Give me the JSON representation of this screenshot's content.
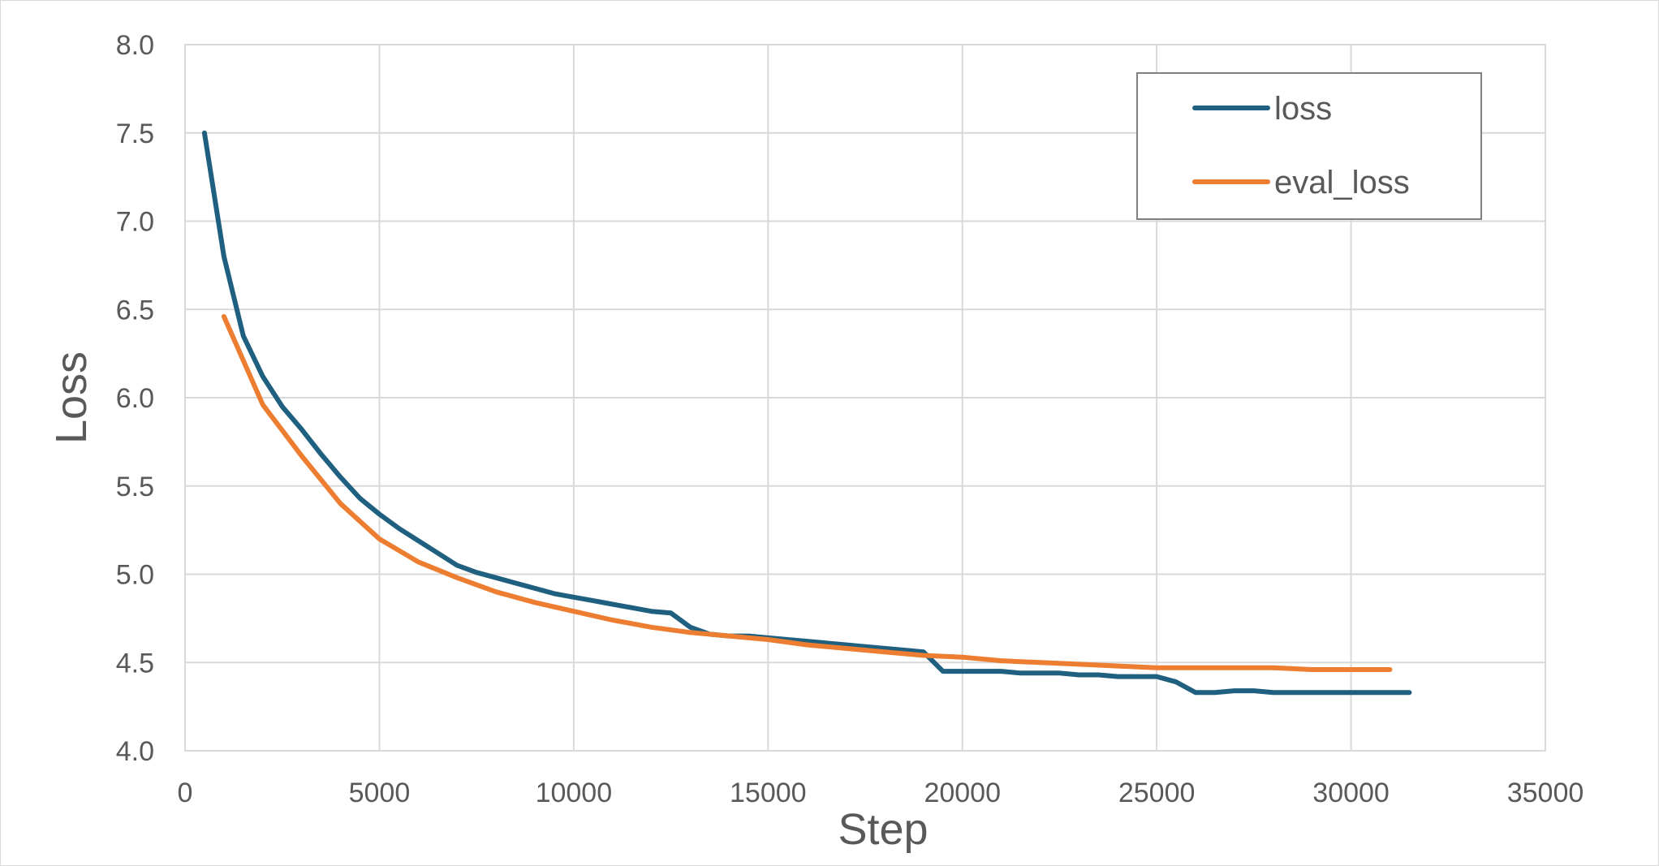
{
  "chart_data": {
    "type": "line",
    "title": "",
    "xlabel": "Step",
    "ylabel": "Loss",
    "xlim": [
      0,
      35000
    ],
    "ylim": [
      4.0,
      8.0
    ],
    "x_ticks": [
      0,
      5000,
      10000,
      15000,
      20000,
      25000,
      30000,
      35000
    ],
    "y_ticks": [
      "4.0",
      "4.5",
      "5.0",
      "5.5",
      "6.0",
      "6.5",
      "7.0",
      "7.5",
      "8.0"
    ],
    "grid": true,
    "legend_position": "top-right",
    "series": [
      {
        "name": "loss",
        "color": "#1f5f7f",
        "x": [
          500,
          1000,
          1500,
          2000,
          2500,
          3000,
          3500,
          4000,
          4500,
          5000,
          5500,
          6000,
          6500,
          7000,
          7500,
          8000,
          8500,
          9000,
          9500,
          10000,
          10500,
          11000,
          11500,
          12000,
          12500,
          13000,
          13500,
          14000,
          14500,
          15000,
          15500,
          16000,
          16500,
          17000,
          17500,
          18000,
          18500,
          19000,
          19500,
          20000,
          20500,
          21000,
          21500,
          22000,
          22500,
          23000,
          23500,
          24000,
          24500,
          25000,
          25500,
          26000,
          26500,
          27000,
          27500,
          28000,
          28500,
          29000,
          29500,
          30000,
          30500,
          31000,
          31500
        ],
        "y": [
          7.5,
          6.8,
          6.35,
          6.12,
          5.95,
          5.82,
          5.68,
          5.55,
          5.43,
          5.34,
          5.26,
          5.19,
          5.12,
          5.05,
          5.01,
          4.98,
          4.95,
          4.92,
          4.89,
          4.87,
          4.85,
          4.83,
          4.81,
          4.79,
          4.78,
          4.7,
          4.66,
          4.65,
          4.65,
          4.64,
          4.63,
          4.62,
          4.61,
          4.6,
          4.59,
          4.58,
          4.57,
          4.56,
          4.45,
          4.45,
          4.45,
          4.45,
          4.44,
          4.44,
          4.44,
          4.43,
          4.43,
          4.42,
          4.42,
          4.42,
          4.39,
          4.33,
          4.33,
          4.34,
          4.34,
          4.33,
          4.33,
          4.33,
          4.33,
          4.33,
          4.33,
          4.33,
          4.33
        ]
      },
      {
        "name": "eval_loss",
        "color": "#ed7d31",
        "x": [
          1000,
          2000,
          3000,
          4000,
          5000,
          6000,
          7000,
          8000,
          9000,
          10000,
          11000,
          12000,
          13000,
          14000,
          15000,
          16000,
          17000,
          18000,
          19000,
          20000,
          21000,
          22000,
          23000,
          24000,
          25000,
          26000,
          27000,
          28000,
          29000,
          30000,
          31000
        ],
        "y": [
          6.46,
          5.96,
          5.67,
          5.4,
          5.2,
          5.07,
          4.98,
          4.9,
          4.84,
          4.79,
          4.74,
          4.7,
          4.67,
          4.65,
          4.63,
          4.6,
          4.58,
          4.56,
          4.54,
          4.53,
          4.51,
          4.5,
          4.49,
          4.48,
          4.47,
          4.47,
          4.47,
          4.47,
          4.46,
          4.46,
          4.46
        ]
      }
    ]
  }
}
